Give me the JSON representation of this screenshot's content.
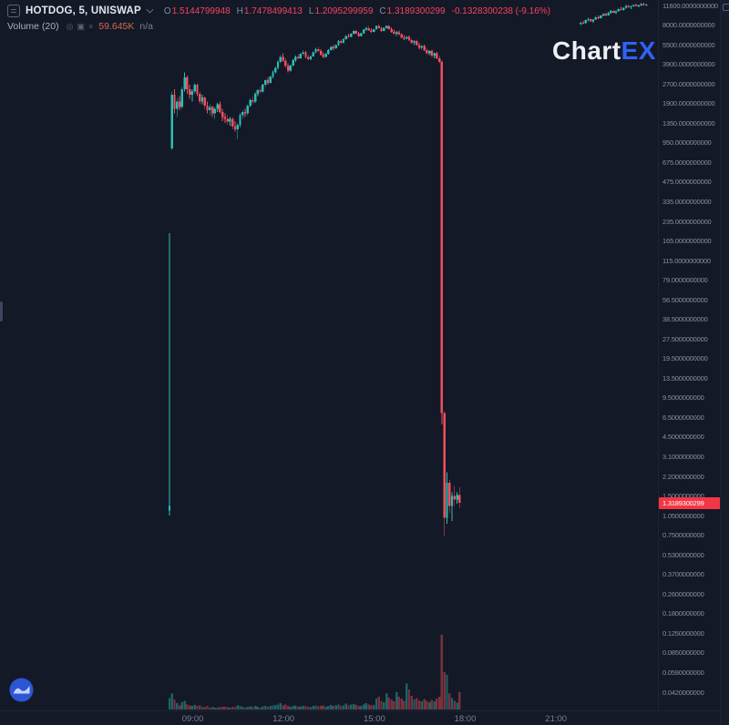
{
  "app": {
    "logo_chart": "Chart",
    "logo_ex": "EX"
  },
  "legend": {
    "symbol": "HOTDOG, 5, UNISWAP",
    "ohlc": {
      "o_label": "O",
      "o": "1.5144799948",
      "h_label": "H",
      "h": "1.7478499413",
      "l_label": "L",
      "l": "1.2095299959",
      "c_label": "C",
      "c": "1.3189300299",
      "change": "-0.1328300238 (-9.16%)"
    },
    "volume": {
      "label": "Volume (20)",
      "icons": [
        "◎",
        "▣",
        "×"
      ],
      "value": "59.645K",
      "ma": "n/a"
    }
  },
  "price_flag": {
    "value": "1.3189300299",
    "color": "#f23645"
  },
  "chart_data": {
    "type": "candlestick",
    "symbol": "HOTDOG",
    "interval": "5",
    "exchange": "UNISWAP",
    "price_scale": "log",
    "start_time": "08:10",
    "step_minutes": 5,
    "colors": {
      "up": "#2abdb4",
      "down": "#ef4f5e",
      "vol_up": "rgba(42,189,180,0.45)",
      "vol_down": "rgba(239,79,94,0.45)",
      "flag_bg": "#f23645",
      "logo_accent": "#2f62f7"
    },
    "price_axis_ticks": [
      "11600.0000000000",
      "8000.0000000000",
      "5500.0000000000",
      "3900.0000000000",
      "2700.0000000000",
      "1900.0000000000",
      "1350.0000000000",
      "950.0000000000",
      "675.0000000000",
      "475.0000000000",
      "335.0000000000",
      "235.0000000000",
      "165.0000000000",
      "115.0000000000",
      "79.0000000000",
      "56.5000000000",
      "38.5000000000",
      "27.5000000000",
      "19.5000000000",
      "13.5000000000",
      "9.5000000000",
      "6.5000000000",
      "4.5000000000",
      "3.1000000000",
      "2.2000000000",
      "1.5000000000",
      "1.0500000000",
      "0.7500000000",
      "0.5300000000",
      "0.3700000000",
      "0.2600000000",
      "0.1800000000",
      "0.1250000000",
      "0.0850000000",
      "0.0590000000",
      "0.0420000000"
    ],
    "time_axis_ticks": [
      {
        "label": "09:00",
        "index": 10
      },
      {
        "label": "12:00",
        "index": 46
      },
      {
        "label": "15:00",
        "index": 82
      },
      {
        "label": "18:00",
        "index": 118
      },
      {
        "label": "21:00",
        "index": 154
      }
    ],
    "candles": [
      [
        1.15,
        180,
        1.05,
        1.25,
        40
      ],
      [
        850,
        2400,
        820,
        2250,
        55
      ],
      [
        2250,
        2500,
        1600,
        1750,
        35
      ],
      [
        1750,
        2100,
        1500,
        2000,
        22
      ],
      [
        2000,
        2200,
        1700,
        1800,
        15
      ],
      [
        1800,
        2600,
        1750,
        2500,
        25
      ],
      [
        2500,
        3400,
        2400,
        3100,
        30
      ],
      [
        3100,
        3200,
        2300,
        2500,
        18
      ],
      [
        2500,
        2700,
        2100,
        2250,
        14
      ],
      [
        2250,
        2500,
        2000,
        2400,
        12
      ],
      [
        2400,
        2800,
        2300,
        2700,
        16
      ],
      [
        2700,
        2750,
        2200,
        2300,
        12
      ],
      [
        2300,
        2400,
        1900,
        2000,
        14
      ],
      [
        2000,
        2250,
        1900,
        2150,
        8
      ],
      [
        2150,
        2200,
        1750,
        1850,
        10
      ],
      [
        1850,
        2000,
        1600,
        1700,
        12
      ],
      [
        1700,
        1900,
        1550,
        1800,
        7
      ],
      [
        1800,
        1850,
        1500,
        1600,
        9
      ],
      [
        1600,
        1800,
        1450,
        1750,
        7
      ],
      [
        1750,
        1950,
        1650,
        1900,
        6
      ],
      [
        1900,
        2000,
        1600,
        1650,
        8
      ],
      [
        1650,
        1750,
        1400,
        1500,
        9
      ],
      [
        1500,
        1600,
        1350,
        1450,
        10
      ],
      [
        1450,
        1550,
        1300,
        1380,
        8
      ],
      [
        1380,
        1500,
        1280,
        1450,
        6
      ],
      [
        1450,
        1500,
        1200,
        1260,
        9
      ],
      [
        1260,
        1400,
        1150,
        1200,
        8
      ],
      [
        1200,
        1350,
        1000,
        1300,
        14
      ],
      [
        1300,
        1600,
        1250,
        1550,
        12
      ],
      [
        1550,
        1700,
        1450,
        1650,
        9
      ],
      [
        1650,
        1750,
        1500,
        1600,
        7
      ],
      [
        1600,
        1900,
        1550,
        1850,
        10
      ],
      [
        1850,
        2100,
        1800,
        2050,
        11
      ],
      [
        2050,
        2200,
        1900,
        2000,
        8
      ],
      [
        2000,
        2350,
        1950,
        2300,
        12
      ],
      [
        2300,
        2500,
        2200,
        2450,
        10
      ],
      [
        2450,
        2600,
        2300,
        2400,
        7
      ],
      [
        2400,
        2750,
        2350,
        2700,
        11
      ],
      [
        2700,
        3000,
        2600,
        2950,
        13
      ],
      [
        2950,
        3100,
        2700,
        2800,
        9
      ],
      [
        2800,
        3200,
        2750,
        3150,
        12
      ],
      [
        3150,
        3500,
        3050,
        3400,
        14
      ],
      [
        3400,
        3800,
        3300,
        3700,
        16
      ],
      [
        3700,
        4200,
        3600,
        4100,
        18
      ],
      [
        4100,
        4700,
        4000,
        4500,
        22
      ],
      [
        4500,
        4800,
        4100,
        4200,
        15
      ],
      [
        4200,
        4400,
        3700,
        3800,
        17
      ],
      [
        3800,
        4000,
        3400,
        3500,
        13
      ],
      [
        3500,
        3900,
        3450,
        3850,
        10
      ],
      [
        3850,
        4300,
        3800,
        4250,
        12
      ],
      [
        4250,
        4600,
        4100,
        4500,
        14
      ],
      [
        4500,
        4700,
        4300,
        4400,
        9
      ],
      [
        4400,
        4800,
        4350,
        4750,
        11
      ],
      [
        4750,
        5100,
        4600,
        4900,
        13
      ],
      [
        4900,
        5000,
        4400,
        4500,
        12
      ],
      [
        4500,
        4700,
        4200,
        4300,
        10
      ],
      [
        4300,
        4600,
        4250,
        4550,
        8
      ],
      [
        4550,
        5000,
        4500,
        4900,
        12
      ],
      [
        4900,
        5300,
        4800,
        5200,
        15
      ],
      [
        5200,
        5400,
        4900,
        5000,
        11
      ],
      [
        5000,
        5200,
        4600,
        4700,
        12
      ],
      [
        4700,
        4900,
        4400,
        4500,
        14
      ],
      [
        4500,
        4800,
        4450,
        4750,
        10
      ],
      [
        4750,
        5200,
        4700,
        5100,
        13
      ],
      [
        5100,
        5500,
        5000,
        5400,
        16
      ],
      [
        5400,
        5600,
        5100,
        5250,
        12
      ],
      [
        5250,
        5700,
        5200,
        5600,
        14
      ],
      [
        5600,
        6100,
        5500,
        6000,
        18
      ],
      [
        6000,
        6200,
        5700,
        5800,
        13
      ],
      [
        5800,
        6300,
        5750,
        6200,
        15
      ],
      [
        6200,
        6700,
        6100,
        6600,
        20
      ],
      [
        6600,
        6900,
        6400,
        6500,
        14
      ],
      [
        6500,
        7000,
        6450,
        6900,
        17
      ],
      [
        6900,
        7300,
        6800,
        7200,
        19
      ],
      [
        7200,
        7400,
        6800,
        6900,
        16
      ],
      [
        6900,
        7100,
        6500,
        6600,
        13
      ],
      [
        6600,
        7000,
        6550,
        6950,
        12
      ],
      [
        6950,
        7500,
        6900,
        7400,
        18
      ],
      [
        7400,
        7800,
        7300,
        7600,
        22
      ],
      [
        7600,
        7900,
        7200,
        7300,
        17
      ],
      [
        7300,
        7600,
        7000,
        7100,
        14
      ],
      [
        7100,
        7500,
        7050,
        7450,
        16
      ],
      [
        7450,
        8000,
        7400,
        7900,
        38
      ],
      [
        7900,
        8100,
        7500,
        7600,
        45
      ],
      [
        7600,
        7800,
        7100,
        7200,
        30
      ],
      [
        7200,
        7700,
        7150,
        7650,
        26
      ],
      [
        7650,
        8000,
        7550,
        7900,
        55
      ],
      [
        7900,
        8050,
        7400,
        7500,
        42
      ],
      [
        7500,
        7700,
        7000,
        7100,
        35
      ],
      [
        7100,
        7400,
        6800,
        6900,
        28
      ],
      [
        6900,
        7200,
        6600,
        7050,
        60
      ],
      [
        7050,
        7300,
        6700,
        6800,
        44
      ],
      [
        6800,
        6950,
        6300,
        6400,
        38
      ],
      [
        6400,
        6700,
        6100,
        6250,
        30
      ],
      [
        6250,
        6600,
        6150,
        6500,
        90
      ],
      [
        6500,
        6650,
        6000,
        6100,
        70
      ],
      [
        6100,
        6300,
        5700,
        5800,
        48
      ],
      [
        5800,
        6100,
        5600,
        6000,
        35
      ],
      [
        6000,
        6150,
        5500,
        5600,
        40
      ],
      [
        5600,
        5800,
        5200,
        5300,
        32
      ],
      [
        5300,
        5600,
        5100,
        5500,
        28
      ],
      [
        5500,
        5650,
        5000,
        5100,
        36
      ],
      [
        5100,
        5300,
        4700,
        4800,
        30
      ],
      [
        4800,
        5100,
        4650,
        5000,
        25
      ],
      [
        5000,
        5150,
        4500,
        4600,
        34
      ],
      [
        4600,
        4900,
        4400,
        4800,
        28
      ],
      [
        4800,
        4950,
        4300,
        4400,
        38
      ],
      [
        4400,
        4600,
        4000,
        4100,
        45
      ],
      [
        4100,
        4200,
        5.5,
        6.8,
        260
      ],
      [
        6.8,
        7.0,
        0.72,
        1.0,
        130
      ],
      [
        1.0,
        2.3,
        0.9,
        1.9,
        120
      ],
      [
        1.9,
        2.0,
        1.1,
        1.25,
        55
      ],
      [
        1.25,
        1.6,
        0.95,
        1.5,
        40
      ],
      [
        1.5,
        1.8,
        1.25,
        1.4,
        30
      ],
      [
        1.4,
        1.6,
        1.3,
        1.51448,
        24
      ],
      [
        1.51448,
        1.74785,
        1.20953,
        1.31893,
        59.645
      ]
    ],
    "late_candles": {
      "start_index": 163,
      "candles": [
        [
          8200,
          8600,
          8000,
          8400,
          0
        ],
        [
          8400,
          8700,
          8200,
          8300,
          0
        ],
        [
          8300,
          8900,
          8250,
          8800,
          0
        ],
        [
          8800,
          9200,
          8600,
          9000,
          0
        ],
        [
          9000,
          9100,
          8500,
          8600,
          0
        ],
        [
          8600,
          9000,
          8400,
          8900,
          0
        ],
        [
          8900,
          9500,
          8800,
          9300,
          0
        ],
        [
          9300,
          9600,
          9000,
          9100,
          0
        ],
        [
          9100,
          9700,
          9050,
          9600,
          0
        ],
        [
          9600,
          10000,
          9400,
          9800,
          0
        ],
        [
          9800,
          10100,
          9500,
          9600,
          0
        ],
        [
          9600,
          10200,
          9550,
          10000,
          0
        ],
        [
          10000,
          10600,
          9900,
          10400,
          0
        ],
        [
          10400,
          10700,
          10000,
          10100,
          0
        ],
        [
          10100,
          10500,
          9800,
          10300,
          0
        ],
        [
          10300,
          11000,
          10200,
          10800,
          0
        ],
        [
          10800,
          11200,
          10500,
          10600,
          0
        ],
        [
          10600,
          11100,
          10400,
          11000,
          0
        ],
        [
          11000,
          11600,
          10900,
          11400,
          0
        ],
        [
          11400,
          11700,
          11000,
          11100,
          0
        ],
        [
          11100,
          11500,
          10800,
          11300,
          0
        ],
        [
          11300,
          11800,
          11200,
          11600,
          0
        ],
        [
          11600,
          11900,
          11300,
          11400,
          0
        ],
        [
          11400,
          11700,
          11100,
          11500,
          0
        ],
        [
          11500,
          12000,
          11400,
          11800,
          0
        ],
        [
          11800,
          12100,
          11500,
          11600,
          0
        ],
        [
          11600,
          11900,
          11400,
          11700,
          0
        ]
      ]
    }
  }
}
